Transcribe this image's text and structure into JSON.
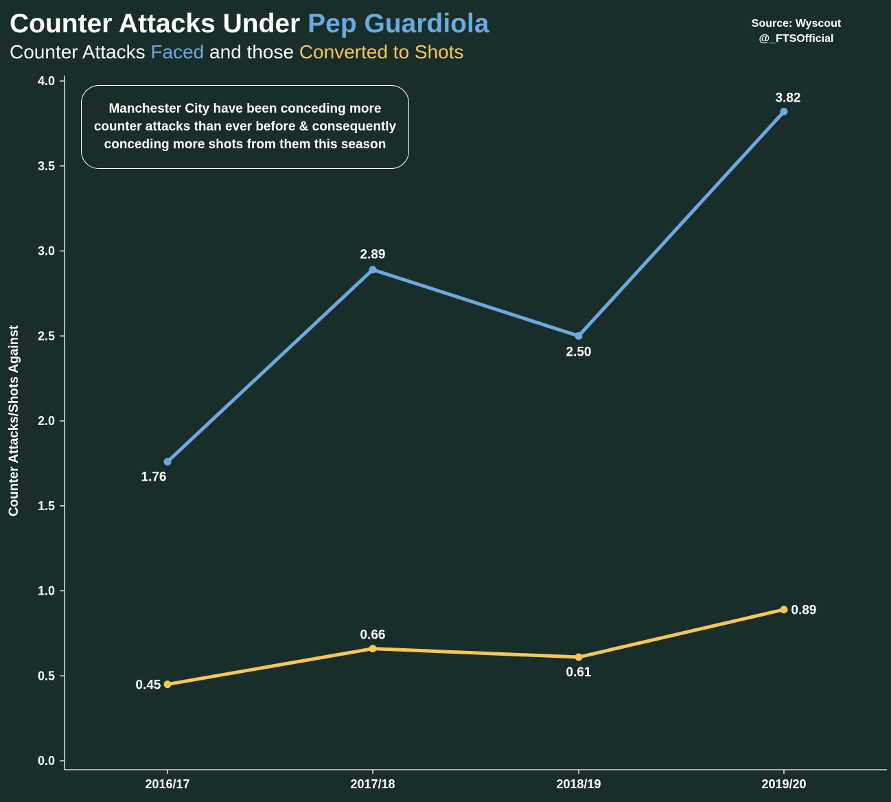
{
  "title": {
    "prefix": "Counter Attacks Under ",
    "highlight": "Pep Guardiola"
  },
  "subtitle": {
    "part1": "Counter Attacks ",
    "faced": "Faced",
    "part2": " and those ",
    "converted": "Converted to Shots"
  },
  "source": {
    "line1": "Source: Wyscout",
    "line2": "@_FTSOfficial"
  },
  "annotation": "Manchester City have been conceding more counter attacks than ever before & consequently conceding more shots from them this season",
  "colors": {
    "background": "#192e2b",
    "faced": "#6aaade",
    "shots": "#f7c55a",
    "text": "#ffffff"
  },
  "chart_data": {
    "type": "line",
    "categories": [
      "2016/17",
      "2017/18",
      "2018/19",
      "2019/20"
    ],
    "ylabel": "Counter Attacks/Shots Against",
    "xlabel": "",
    "ylim": [
      0,
      4
    ],
    "yticks": [
      "0.0",
      "0.5",
      "1.0",
      "1.5",
      "2.0",
      "2.5",
      "3.0",
      "3.5",
      "4.0"
    ],
    "grid": false,
    "legend": "none",
    "series": [
      {
        "name": "Faced",
        "values": [
          1.76,
          2.89,
          2.5,
          3.82
        ],
        "labels": [
          "1.76",
          "2.89",
          "2.50",
          "3.82"
        ],
        "color": "#6aaade"
      },
      {
        "name": "Converted to Shots",
        "values": [
          0.45,
          0.66,
          0.61,
          0.89
        ],
        "labels": [
          "0.45",
          "0.66",
          "0.61",
          "0.89"
        ],
        "color": "#f7c55a"
      }
    ]
  }
}
